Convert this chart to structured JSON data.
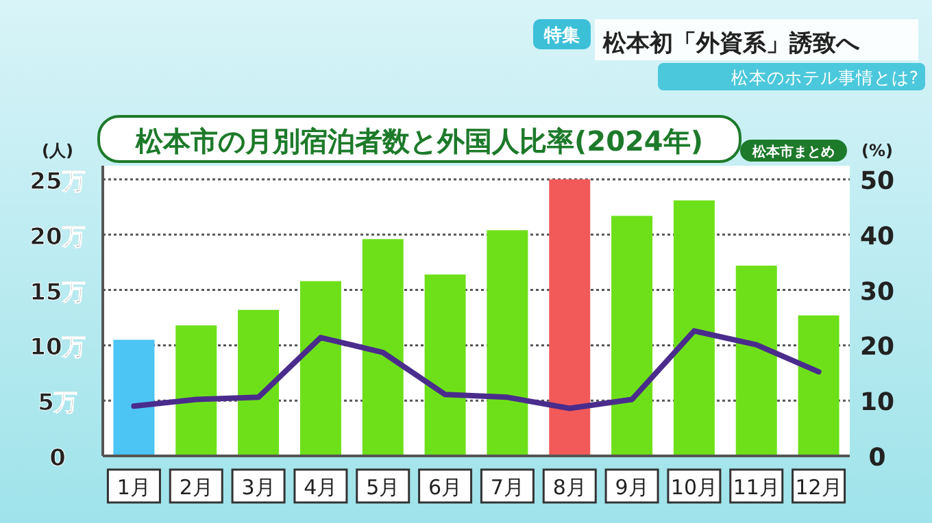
{
  "chart_data": {
    "type": "bar",
    "title": "松本市の月別宿泊者数と外国人比率(2024年)",
    "ylabel": "(人)",
    "y2label": "(%)",
    "annotations": [
      "特集",
      "松本初「外資系」誘致へ",
      "松本のホテル事情とは?",
      "松本市まとめ"
    ],
    "categories": [
      "1月",
      "2月",
      "3月",
      "4月",
      "5月",
      "6月",
      "7月",
      "8月",
      "9月",
      "10月",
      "11月",
      "12月"
    ],
    "series": [
      {
        "colors": [
          "#4cc4f4",
          "#6ee01a",
          "#6ee01a",
          "#6ee01a",
          "#6ee01a",
          "#6ee01a",
          "#6ee01a",
          "#f25a5a",
          "#6ee01a",
          "#6ee01a",
          "#6ee01a",
          "#6ee01a"
        ],
        "values": [
          10.5,
          11.8,
          13.2,
          15.8,
          19.6,
          16.4,
          20.4,
          25,
          21.7,
          23.1,
          17.2,
          12.7
        ]
      },
      {
        "type": "line",
        "axis": "y2",
        "color": "#4a2c8c",
        "values": [
          9.0,
          10.2,
          10.6,
          21.4,
          18.7,
          11.1,
          10.6,
          8.6,
          10.2,
          22.6,
          20.1,
          15.2
        ]
      }
    ],
    "ylim": [
      0,
      25
    ],
    "yticks": [
      0,
      {
        "value": 5,
        "label": "5万"
      },
      {
        "value": 10,
        "label": "10万"
      },
      {
        "value": 15,
        "label": "15万"
      },
      {
        "value": 20,
        "label": "20万"
      },
      {
        "value": 25,
        "label": "25万"
      }
    ],
    "y2lim": [
      0,
      50
    ],
    "y2ticks": [
      0,
      10,
      20,
      30,
      40,
      50
    ],
    "grid": "y",
    "marker": "none",
    "line_style": "solid"
  }
}
